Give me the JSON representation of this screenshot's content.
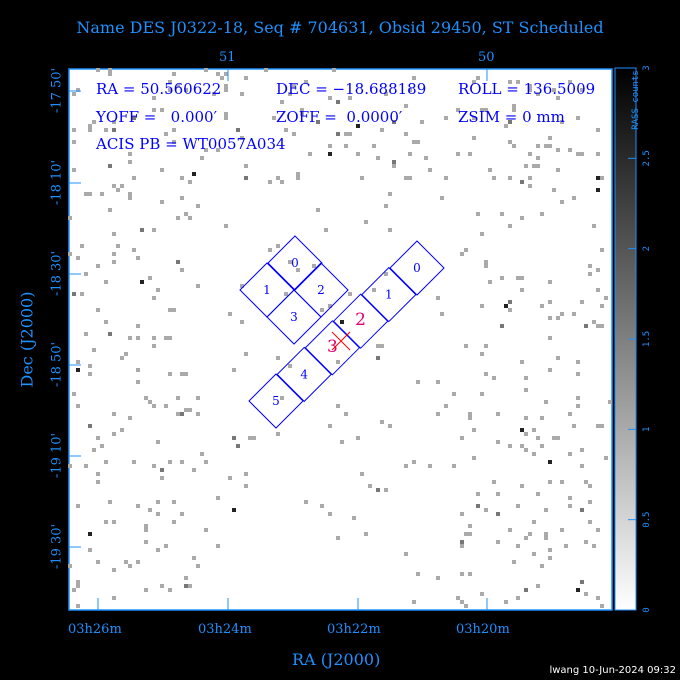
{
  "title": "Name DES J0322-18, Seq # 704631, Obsid 29450, ST Scheduled",
  "info": {
    "ra": "RA = 50.560622",
    "dec": "DEC = −18.688189",
    "roll": "ROLL = 136.5009",
    "yoff": "YOFF =   0.000′",
    "zoff": "ZOFF =  0.0000′",
    "zsim": "ZSIM = 0 mm",
    "acis_pb": "ACIS PB = WT0057A034"
  },
  "footer": "lwang 10-Jun-2024 09:32",
  "colors": {
    "axis": "#1e90ff",
    "chips": "#0000ff",
    "aimpoint": "#e0006a",
    "marker": "#ff0000"
  },
  "chart_data": {
    "type": "heatmap",
    "xlabel": "RA (J2000)",
    "ylabel": "Dec (J2000)",
    "x_ticks_bottom": [
      "03h26m",
      "03h24m",
      "03h22m",
      "03h20m"
    ],
    "x_ticks_top": [
      "51",
      "50"
    ],
    "y_ticks": [
      "-17 50'",
      "-18 10'",
      "-18 30'",
      "-18 50'",
      "-19 10'",
      "-19 30'"
    ],
    "colorbar": {
      "label": "RASS counts",
      "range": [
        0,
        3
      ],
      "ticks": [
        "0",
        "0.5",
        "1",
        "1.5",
        "2",
        "2.5",
        "3"
      ]
    },
    "acis_i_chips": [
      "0",
      "1",
      "2",
      "3"
    ],
    "acis_s_chips": [
      "0",
      "1",
      "2",
      "3",
      "4",
      "5"
    ],
    "aimpoint_chip": "S3"
  }
}
